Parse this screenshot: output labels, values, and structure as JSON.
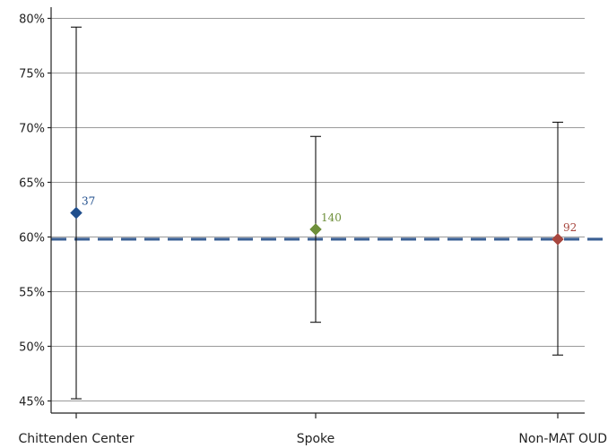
{
  "chart_data": {
    "type": "scatter",
    "categories": [
      "Chittenden Center",
      "Spoke",
      "Non-MAT OUD"
    ],
    "series": [
      {
        "values": [
          62.2,
          60.7,
          59.8
        ],
        "error_low": [
          45.2,
          52.2,
          49.2
        ],
        "error_high": [
          79.2,
          69.2,
          70.5
        ],
        "data_labels": [
          "37",
          "140",
          "92"
        ],
        "colors": [
          "#1f4e8c",
          "#6e8f3a",
          "#a8473f"
        ],
        "marker": "diamond"
      }
    ],
    "reference_line": {
      "value": 59.8,
      "style": "dashed",
      "color": "#3a5f93"
    },
    "yticks": [
      45,
      50,
      55,
      60,
      65,
      70,
      75,
      80
    ],
    "ytick_labels": [
      "45%",
      "50%",
      "55%",
      "60%",
      "65%",
      "70%",
      "75%",
      "80%"
    ],
    "ylim": [
      44.5,
      81
    ],
    "grid": true,
    "title": "",
    "xlabel": "",
    "ylabel": ""
  }
}
